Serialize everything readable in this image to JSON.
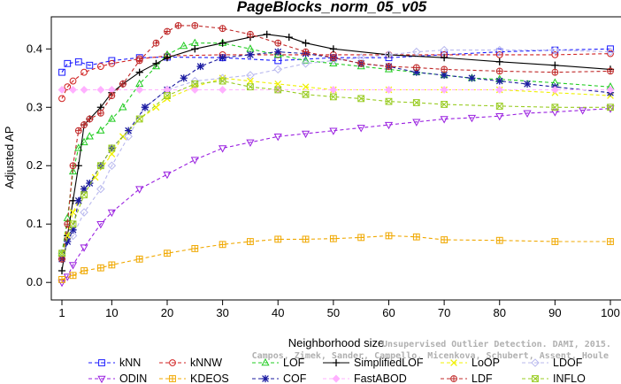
{
  "chart_data": {
    "type": "line",
    "title": "PageBlocks_norm_05_v05",
    "xlabel": "Neighborhood size",
    "ylabel": "Adjusted AP",
    "xlim": [
      1,
      100
    ],
    "ylim": [
      -0.03,
      0.455
    ],
    "x_ticks": [
      1,
      10,
      20,
      30,
      40,
      50,
      60,
      70,
      80,
      90,
      100
    ],
    "y_ticks": [
      0.0,
      0.1,
      0.2,
      0.3,
      0.4
    ],
    "y_tick_labels": [
      "0.0",
      "0.1",
      "0.2",
      "0.3",
      "0.4"
    ],
    "legend_position": "bottom",
    "credit_line1": "Unsupervised Outlier Detection. DAMI, 2015.",
    "credit_line2": "Campos, Zimek, Sander, Campello, Micenkova, Schubert, Assent, Houle",
    "series": [
      {
        "name": "kNN",
        "color": "#1a1aff",
        "marker": "square",
        "dash": "4,3",
        "points": [
          [
            1,
            0.36
          ],
          [
            2,
            0.375
          ],
          [
            4,
            0.378
          ],
          [
            6,
            0.372
          ],
          [
            10,
            0.38
          ],
          [
            15,
            0.385
          ],
          [
            20,
            0.386
          ],
          [
            30,
            0.385
          ],
          [
            40,
            0.38
          ],
          [
            50,
            0.385
          ],
          [
            60,
            0.385
          ],
          [
            70,
            0.39
          ],
          [
            80,
            0.395
          ],
          [
            90,
            0.398
          ],
          [
            100,
            0.4
          ]
        ]
      },
      {
        "name": "kNNW",
        "color": "#d02020",
        "marker": "circle",
        "dash": "4,3",
        "points": [
          [
            1,
            0.315
          ],
          [
            2,
            0.335
          ],
          [
            3,
            0.345
          ],
          [
            5,
            0.36
          ],
          [
            8,
            0.37
          ],
          [
            10,
            0.375
          ],
          [
            15,
            0.383
          ],
          [
            20,
            0.388
          ],
          [
            30,
            0.39
          ],
          [
            40,
            0.39
          ],
          [
            50,
            0.39
          ],
          [
            60,
            0.39
          ],
          [
            70,
            0.39
          ],
          [
            80,
            0.39
          ],
          [
            90,
            0.39
          ],
          [
            100,
            0.392
          ]
        ]
      },
      {
        "name": "LOF",
        "color": "#22cc22",
        "marker": "triangle-up",
        "dash": "4,3",
        "points": [
          [
            1,
            0.05
          ],
          [
            2,
            0.11
          ],
          [
            3,
            0.19
          ],
          [
            4,
            0.23
          ],
          [
            5,
            0.24
          ],
          [
            6,
            0.25
          ],
          [
            8,
            0.26
          ],
          [
            10,
            0.28
          ],
          [
            12,
            0.3
          ],
          [
            15,
            0.34
          ],
          [
            18,
            0.37
          ],
          [
            20,
            0.39
          ],
          [
            23,
            0.405
          ],
          [
            25,
            0.41
          ],
          [
            30,
            0.41
          ],
          [
            35,
            0.4
          ],
          [
            40,
            0.39
          ],
          [
            45,
            0.38
          ],
          [
            50,
            0.375
          ],
          [
            55,
            0.37
          ],
          [
            60,
            0.365
          ],
          [
            65,
            0.36
          ],
          [
            70,
            0.355
          ],
          [
            75,
            0.35
          ],
          [
            80,
            0.348
          ],
          [
            90,
            0.342
          ],
          [
            100,
            0.335
          ]
        ]
      },
      {
        "name": "SimplifiedLOF",
        "color": "#000000",
        "marker": "plus",
        "dash": "",
        "points": [
          [
            1,
            0.02
          ],
          [
            2,
            0.08
          ],
          [
            3,
            0.14
          ],
          [
            4,
            0.2
          ],
          [
            5,
            0.27
          ],
          [
            6,
            0.28
          ],
          [
            8,
            0.3
          ],
          [
            10,
            0.325
          ],
          [
            12,
            0.34
          ],
          [
            15,
            0.36
          ],
          [
            18,
            0.375
          ],
          [
            20,
            0.385
          ],
          [
            25,
            0.4
          ],
          [
            30,
            0.41
          ],
          [
            35,
            0.42
          ],
          [
            38,
            0.425
          ],
          [
            42,
            0.42
          ],
          [
            45,
            0.41
          ],
          [
            50,
            0.4
          ],
          [
            60,
            0.39
          ],
          [
            70,
            0.385
          ],
          [
            80,
            0.378
          ],
          [
            90,
            0.372
          ],
          [
            100,
            0.365
          ]
        ]
      },
      {
        "name": "LoOP",
        "color": "#f0f000",
        "marker": "x",
        "dash": "4,3",
        "points": [
          [
            1,
            0.05
          ],
          [
            2,
            0.08
          ],
          [
            3,
            0.12
          ],
          [
            4,
            0.14
          ],
          [
            5,
            0.16
          ],
          [
            7,
            0.18
          ],
          [
            10,
            0.22
          ],
          [
            12,
            0.25
          ],
          [
            15,
            0.28
          ],
          [
            18,
            0.3
          ],
          [
            20,
            0.315
          ],
          [
            25,
            0.335
          ],
          [
            30,
            0.35
          ],
          [
            35,
            0.345
          ],
          [
            40,
            0.34
          ],
          [
            45,
            0.335
          ],
          [
            50,
            0.33
          ],
          [
            60,
            0.33
          ],
          [
            70,
            0.33
          ],
          [
            80,
            0.33
          ],
          [
            90,
            0.325
          ],
          [
            100,
            0.32
          ]
        ]
      },
      {
        "name": "LDOF",
        "color": "#b8b8ee",
        "marker": "diamond",
        "dash": "4,3",
        "points": [
          [
            1,
            0.05
          ],
          [
            3,
            0.08
          ],
          [
            5,
            0.12
          ],
          [
            8,
            0.16
          ],
          [
            10,
            0.2
          ],
          [
            13,
            0.25
          ],
          [
            16,
            0.3
          ],
          [
            20,
            0.33
          ],
          [
            25,
            0.345
          ],
          [
            30,
            0.35
          ],
          [
            35,
            0.355
          ],
          [
            40,
            0.365
          ],
          [
            45,
            0.375
          ],
          [
            50,
            0.38
          ],
          [
            55,
            0.385
          ],
          [
            60,
            0.39
          ],
          [
            65,
            0.395
          ],
          [
            70,
            0.398
          ],
          [
            80,
            0.398
          ],
          [
            90,
            0.398
          ],
          [
            100,
            0.395
          ]
        ]
      },
      {
        "name": "ODIN",
        "color": "#9a20e0",
        "marker": "triangle-down",
        "dash": "4,3",
        "points": [
          [
            1,
            0.0
          ],
          [
            2,
            0.01
          ],
          [
            3,
            0.03
          ],
          [
            5,
            0.06
          ],
          [
            8,
            0.1
          ],
          [
            10,
            0.12
          ],
          [
            15,
            0.16
          ],
          [
            20,
            0.185
          ],
          [
            25,
            0.21
          ],
          [
            30,
            0.23
          ],
          [
            35,
            0.24
          ],
          [
            40,
            0.25
          ],
          [
            45,
            0.255
          ],
          [
            50,
            0.26
          ],
          [
            55,
            0.265
          ],
          [
            60,
            0.27
          ],
          [
            65,
            0.275
          ],
          [
            70,
            0.28
          ],
          [
            75,
            0.282
          ],
          [
            80,
            0.285
          ],
          [
            85,
            0.29
          ],
          [
            90,
            0.292
          ],
          [
            95,
            0.295
          ],
          [
            100,
            0.298
          ]
        ]
      },
      {
        "name": "KDEOS",
        "color": "#f0a800",
        "marker": "square-cross",
        "dash": "4,3",
        "points": [
          [
            1,
            0.005
          ],
          [
            3,
            0.012
          ],
          [
            5,
            0.02
          ],
          [
            8,
            0.025
          ],
          [
            10,
            0.03
          ],
          [
            15,
            0.04
          ],
          [
            20,
            0.05
          ],
          [
            25,
            0.058
          ],
          [
            30,
            0.065
          ],
          [
            35,
            0.07
          ],
          [
            40,
            0.074
          ],
          [
            45,
            0.074
          ],
          [
            50,
            0.075
          ],
          [
            55,
            0.077
          ],
          [
            60,
            0.08
          ],
          [
            65,
            0.078
          ],
          [
            70,
            0.073
          ],
          [
            80,
            0.072
          ],
          [
            90,
            0.07
          ],
          [
            100,
            0.07
          ]
        ]
      },
      {
        "name": "COF",
        "color": "#1a1aa0",
        "marker": "asterisk",
        "dash": "4,3",
        "points": [
          [
            1,
            0.04
          ],
          [
            2,
            0.07
          ],
          [
            3,
            0.09
          ],
          [
            4,
            0.14
          ],
          [
            5,
            0.16
          ],
          [
            6,
            0.17
          ],
          [
            8,
            0.2
          ],
          [
            10,
            0.23
          ],
          [
            13,
            0.26
          ],
          [
            16,
            0.3
          ],
          [
            20,
            0.33
          ],
          [
            23,
            0.35
          ],
          [
            26,
            0.37
          ],
          [
            30,
            0.385
          ],
          [
            35,
            0.39
          ],
          [
            40,
            0.395
          ],
          [
            45,
            0.392
          ],
          [
            50,
            0.385
          ],
          [
            55,
            0.375
          ],
          [
            60,
            0.37
          ],
          [
            65,
            0.36
          ],
          [
            70,
            0.355
          ],
          [
            75,
            0.35
          ],
          [
            80,
            0.345
          ],
          [
            85,
            0.34
          ],
          [
            90,
            0.335
          ],
          [
            100,
            0.325
          ]
        ]
      },
      {
        "name": "FastABOD",
        "color": "#ffb0ff",
        "marker": "diamond-filled",
        "dash": "4,3",
        "points": [
          [
            1,
            0.33
          ],
          [
            3,
            0.33
          ],
          [
            5,
            0.33
          ],
          [
            8,
            0.33
          ],
          [
            10,
            0.33
          ],
          [
            15,
            0.33
          ],
          [
            20,
            0.33
          ],
          [
            25,
            0.33
          ],
          [
            30,
            0.33
          ],
          [
            40,
            0.33
          ],
          [
            50,
            0.33
          ],
          [
            60,
            0.33
          ],
          [
            70,
            0.33
          ],
          [
            80,
            0.33
          ],
          [
            90,
            0.33
          ],
          [
            100,
            0.33
          ]
        ]
      },
      {
        "name": "LDF",
        "color": "#c02828",
        "marker": "circle-plus",
        "dash": "4,3",
        "points": [
          [
            1,
            0.04
          ],
          [
            2,
            0.1
          ],
          [
            3,
            0.2
          ],
          [
            4,
            0.26
          ],
          [
            5,
            0.27
          ],
          [
            6,
            0.28
          ],
          [
            8,
            0.29
          ],
          [
            10,
            0.32
          ],
          [
            12,
            0.34
          ],
          [
            15,
            0.38
          ],
          [
            18,
            0.41
          ],
          [
            20,
            0.43
          ],
          [
            22,
            0.44
          ],
          [
            25,
            0.44
          ],
          [
            30,
            0.435
          ],
          [
            35,
            0.425
          ],
          [
            40,
            0.41
          ],
          [
            45,
            0.395
          ],
          [
            50,
            0.385
          ],
          [
            55,
            0.375
          ],
          [
            60,
            0.37
          ],
          [
            65,
            0.368
          ],
          [
            70,
            0.365
          ],
          [
            80,
            0.362
          ],
          [
            90,
            0.36
          ],
          [
            100,
            0.362
          ]
        ]
      },
      {
        "name": "INFLO",
        "color": "#99cc22",
        "marker": "square-x",
        "dash": "4,3",
        "points": [
          [
            1,
            0.05
          ],
          [
            3,
            0.1
          ],
          [
            5,
            0.15
          ],
          [
            8,
            0.2
          ],
          [
            10,
            0.23
          ],
          [
            15,
            0.28
          ],
          [
            20,
            0.32
          ],
          [
            25,
            0.34
          ],
          [
            30,
            0.345
          ],
          [
            35,
            0.335
          ],
          [
            40,
            0.33
          ],
          [
            45,
            0.322
          ],
          [
            50,
            0.318
          ],
          [
            55,
            0.315
          ],
          [
            60,
            0.31
          ],
          [
            65,
            0.308
          ],
          [
            70,
            0.305
          ],
          [
            80,
            0.302
          ],
          [
            90,
            0.3
          ],
          [
            100,
            0.3
          ]
        ]
      }
    ]
  }
}
